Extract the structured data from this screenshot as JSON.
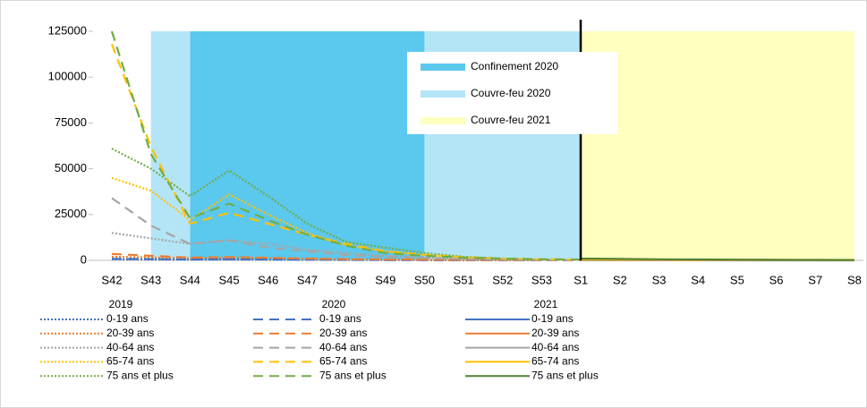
{
  "chart_data": {
    "type": "line",
    "categories": [
      "S42",
      "S43",
      "S44",
      "S45",
      "S46",
      "S47",
      "S48",
      "S49",
      "S50",
      "S51",
      "S52",
      "S53",
      "S1",
      "S2",
      "S3",
      "S4",
      "S5",
      "S6",
      "S7",
      "S8"
    ],
    "ylim": [
      0,
      125000
    ],
    "yticks": [
      0,
      25000,
      50000,
      75000,
      100000,
      125000
    ],
    "bands": [
      {
        "name": "Confinement 2020",
        "color": "#5bc8ee",
        "from": "S44",
        "to": "S50"
      },
      {
        "name": "Couvre-feu 2020",
        "color": "#b4e5f7",
        "from": "S43",
        "to": "S44"
      },
      {
        "name": "Couvre-feu 2020",
        "color": "#b4e5f7",
        "from": "S50",
        "to": "S1"
      },
      {
        "name": "Couvre-feu 2021",
        "color": "#ffffc0",
        "from": "S1",
        "to": "S8"
      }
    ],
    "series_groups": [
      {
        "name": "2019",
        "dash": "dotted",
        "series": [
          {
            "name": "0-19 ans",
            "color": "#4472c4",
            "values": [
              600,
              500,
              400,
              500,
              400,
              300,
              250,
              200,
              150,
              100,
              80,
              60,
              null,
              null,
              null,
              null,
              null,
              null,
              null,
              null
            ]
          },
          {
            "name": "20-39 ans",
            "color": "#ed7d31",
            "values": [
              2000,
              1500,
              1200,
              1500,
              1200,
              800,
              600,
              400,
              300,
              200,
              100,
              100,
              null,
              null,
              null,
              null,
              null,
              null,
              null,
              null
            ]
          },
          {
            "name": "40-64 ans",
            "color": "#a5a5a5",
            "values": [
              15000,
              12000,
              9000,
              11000,
              9000,
              6000,
              4000,
              2500,
              1500,
              800,
              400,
              200,
              null,
              null,
              null,
              null,
              null,
              null,
              null,
              null
            ]
          },
          {
            "name": "65-74 ans",
            "color": "#ffc000",
            "values": [
              45000,
              38000,
              22000,
              36000,
              25000,
              15000,
              8000,
              5000,
              3000,
              1500,
              800,
              400,
              null,
              null,
              null,
              null,
              null,
              null,
              null,
              null
            ]
          },
          {
            "name": "75 ans et plus",
            "color": "#70ad47",
            "values": [
              61000,
              50000,
              35000,
              49000,
              35000,
              20000,
              10000,
              7000,
              4000,
              2000,
              1000,
              500,
              null,
              null,
              null,
              null,
              null,
              null,
              null,
              null
            ]
          }
        ]
      },
      {
        "name": "2020",
        "dash": "dashed",
        "series": [
          {
            "name": "0-19 ans",
            "color": "#4472c4",
            "values": [
              900,
              700,
              500,
              600,
              500,
              400,
              300,
              200,
              150,
              100,
              80,
              60,
              50,
              null,
              null,
              null,
              null,
              null,
              null,
              null
            ]
          },
          {
            "name": "20-39 ans",
            "color": "#ed7d31",
            "values": [
              3500,
              2500,
              1500,
              1800,
              1400,
              1000,
              700,
              500,
              400,
              300,
              200,
              100,
              100,
              null,
              null,
              null,
              null,
              null,
              null,
              null
            ]
          },
          {
            "name": "40-64 ans",
            "color": "#a5a5a5",
            "values": [
              34000,
              19000,
              9000,
              11000,
              7000,
              5000,
              3000,
              2000,
              1200,
              700,
              400,
              200,
              200,
              null,
              null,
              null,
              null,
              null,
              null,
              null
            ]
          },
          {
            "name": "65-74 ans",
            "color": "#ffc000",
            "values": [
              118000,
              62000,
              20000,
              26000,
              20000,
              14000,
              9000,
              5000,
              3000,
              1800,
              1000,
              600,
              400,
              null,
              null,
              null,
              null,
              null,
              null,
              null
            ]
          },
          {
            "name": "75 ans et plus",
            "color": "#70ad47",
            "values": [
              125000,
              58000,
              23000,
              31000,
              22000,
              14000,
              8000,
              4000,
              2500,
              1500,
              1000,
              600,
              500,
              null,
              null,
              null,
              null,
              null,
              null,
              null
            ]
          }
        ]
      },
      {
        "name": "2021",
        "dash": "solid",
        "series": [
          {
            "name": "0-19 ans",
            "color": "#4472c4",
            "values": [
              null,
              null,
              null,
              null,
              null,
              null,
              null,
              null,
              null,
              null,
              null,
              null,
              50,
              40,
              30,
              30,
              20,
              20,
              20,
              20
            ]
          },
          {
            "name": "20-39 ans",
            "color": "#ed7d31",
            "values": [
              null,
              null,
              null,
              null,
              null,
              null,
              null,
              null,
              null,
              null,
              null,
              null,
              100,
              90,
              80,
              70,
              60,
              50,
              50,
              40
            ]
          },
          {
            "name": "40-64 ans",
            "color": "#a5a5a5",
            "values": [
              null,
              null,
              null,
              null,
              null,
              null,
              null,
              null,
              null,
              null,
              null,
              null,
              200,
              180,
              160,
              140,
              120,
              100,
              90,
              80
            ]
          },
          {
            "name": "65-74 ans",
            "color": "#ffc000",
            "values": [
              null,
              null,
              null,
              null,
              null,
              null,
              null,
              null,
              null,
              null,
              null,
              null,
              500,
              450,
              400,
              350,
              300,
              250,
              220,
              200
            ]
          },
          {
            "name": "75 ans et plus",
            "color": "#548235",
            "values": [
              null,
              null,
              null,
              null,
              null,
              null,
              null,
              null,
              null,
              null,
              null,
              null,
              1000,
              800,
              600,
              500,
              400,
              300,
              250,
              200
            ]
          }
        ]
      }
    ]
  }
}
